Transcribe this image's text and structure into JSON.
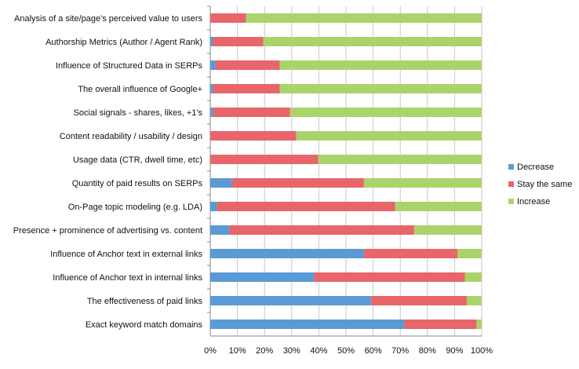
{
  "chart_data": {
    "type": "bar",
    "orientation": "horizontal",
    "stacked": "percent",
    "categories": [
      "Analysis of a site/page's perceived value to users",
      "Authorship Metrics (Author / Agent Rank)",
      "Influence of Structured Data in SERPs",
      "The overall influence of Google+",
      "Social signals - shares, likes, +1's",
      "Content readability / usability / design",
      "Usage data (CTR, dwell time, etc)",
      "Quantity of paid results on SERPs",
      "On-Page topic modeling (e.g. LDA)",
      "Presence + prominence of advertising vs. content",
      "Influence of Anchor text in external links",
      "Influence of Anchor text in internal links",
      "The effectiveness of paid links",
      "Exact keyword match domains"
    ],
    "series": [
      {
        "name": "Decrease",
        "color": "#5b9bd5",
        "values": [
          0,
          1,
          2,
          1,
          1,
          0,
          0,
          8,
          2.5,
          7,
          56.6,
          38.2,
          59.3,
          71.5
        ]
      },
      {
        "name": "Stay the same",
        "color": "#e8656a",
        "values": [
          13.2,
          18.5,
          23.6,
          24.6,
          28.4,
          31.7,
          39.8,
          48.6,
          65.6,
          68.1,
          34.5,
          55.6,
          35.2,
          26.6
        ]
      },
      {
        "name": "Increase",
        "color": "#a9d46b",
        "values": [
          86.8,
          80.5,
          74.4,
          74.4,
          70.6,
          68.3,
          60.2,
          43.4,
          31.9,
          24.9,
          8.9,
          6.2,
          5.5,
          1.9
        ]
      }
    ],
    "xlim": [
      0,
      100
    ],
    "xticks": [
      "0%",
      "10%",
      "20%",
      "30%",
      "40%",
      "50%",
      "60%",
      "70%",
      "80%",
      "90%",
      "100%"
    ],
    "grid": "vertical",
    "legend": "right",
    "title": "",
    "xlabel": "",
    "ylabel": ""
  }
}
